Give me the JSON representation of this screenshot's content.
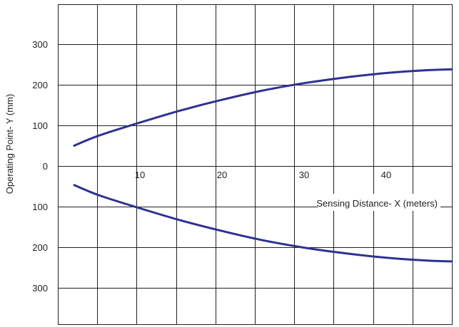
{
  "chart_data": {
    "type": "line",
    "title": "",
    "xlabel": "Sensing Distance- X (meters)",
    "ylabel": "Operating Point- Y (mm)",
    "x_ticks": [
      "10",
      "20",
      "30",
      "40"
    ],
    "y_ticks": [
      "300",
      "200",
      "100",
      "0",
      "100",
      "200",
      "300"
    ],
    "xlim": [
      0,
      48
    ],
    "ylim": [
      -400,
      400
    ],
    "grid": true,
    "series_color": "#2e3192",
    "series": [
      {
        "x": [
          2,
          5,
          10,
          15,
          20,
          25,
          30,
          35,
          40,
          45,
          48
        ],
        "y": [
          50,
          75,
          107,
          137,
          163,
          186,
          204,
          218,
          229,
          236,
          238
        ]
      },
      {
        "x": [
          2,
          5,
          10,
          15,
          20,
          25,
          30,
          35,
          40,
          45,
          48
        ],
        "y": [
          -47,
          -72,
          -104,
          -134,
          -160,
          -183,
          -201,
          -215,
          -226,
          -233,
          -235
        ]
      }
    ]
  }
}
